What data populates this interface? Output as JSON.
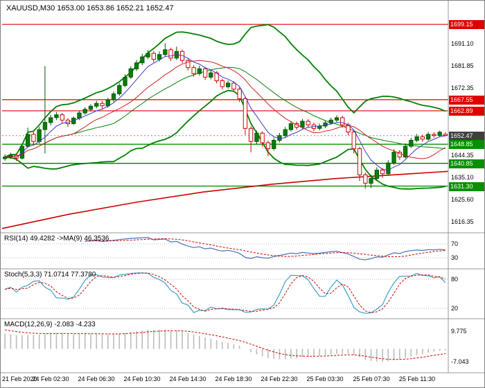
{
  "header": {
    "symbol_label": "XAUUSD,M30 1653.00 1653.86 1652.21 1652.47"
  },
  "colors": {
    "up_fill": "#067f06",
    "up_stroke": "#045504",
    "down_fill": "#ffffff",
    "down_stroke": "#cc0000",
    "bb": "#008000",
    "ma_fast": "#3a3ac8",
    "ma_mid": "#cc2222",
    "ma_long": "#cc0000",
    "res_line": "#e00000",
    "sup_line": "#089000",
    "current_line": "#888888",
    "grid_dotted": "#b8b8b8",
    "divider": "#9a9a9a",
    "rsi_line": "#4a6fb5",
    "rsi_ma": "#cc0000",
    "stoch_k": "#3aa0c8",
    "stoch_d": "#cc0000",
    "macd_hist": "#bbbbbb",
    "macd_signal": "#cc0000"
  },
  "chart_data": {
    "type": "candlestick",
    "symbol": "XAUUSD",
    "timeframe": "M30",
    "current_bar": {
      "open": 1653.0,
      "high": 1653.86,
      "low": 1652.21,
      "close": 1652.47
    },
    "ohlc_header": [
      "open",
      "high",
      "low",
      "close"
    ],
    "candles": [
      [
        1642.8,
        1644.6,
        1641.9,
        1643.5
      ],
      [
        1643.5,
        1645.3,
        1642.8,
        1644.2
      ],
      [
        1644.2,
        1645.0,
        1641.8,
        1643.0
      ],
      [
        1643.0,
        1648.8,
        1642.5,
        1648.0
      ],
      [
        1648.0,
        1655.8,
        1647.3,
        1653.0
      ],
      [
        1653.0,
        1654.0,
        1648.5,
        1650.0
      ],
      [
        1650.0,
        1656.2,
        1649.2,
        1655.0
      ],
      [
        1655.0,
        1681.6,
        1645.0,
        1658.0
      ],
      [
        1658.0,
        1661.2,
        1656.8,
        1660.0
      ],
      [
        1660.0,
        1662.4,
        1659.0,
        1661.2
      ],
      [
        1661.2,
        1662.0,
        1657.8,
        1659.0
      ],
      [
        1659.0,
        1659.8,
        1656.2,
        1657.5
      ],
      [
        1657.5,
        1660.6,
        1656.9,
        1659.8
      ],
      [
        1659.8,
        1662.9,
        1659.0,
        1662.0
      ],
      [
        1662.0,
        1664.4,
        1661.2,
        1663.5
      ],
      [
        1663.5,
        1665.7,
        1662.6,
        1664.8
      ],
      [
        1664.8,
        1667.1,
        1663.9,
        1666.0
      ],
      [
        1666.0,
        1667.0,
        1663.8,
        1665.0
      ],
      [
        1665.0,
        1668.4,
        1664.2,
        1667.5
      ],
      [
        1667.5,
        1671.0,
        1666.6,
        1670.0
      ],
      [
        1670.0,
        1674.5,
        1669.2,
        1673.5
      ],
      [
        1673.5,
        1678.2,
        1672.8,
        1677.0
      ],
      [
        1677.0,
        1681.6,
        1676.2,
        1680.5
      ],
      [
        1680.5,
        1684.2,
        1679.6,
        1683.0
      ],
      [
        1683.0,
        1686.8,
        1682.0,
        1685.5
      ],
      [
        1685.5,
        1688.4,
        1684.6,
        1687.0
      ],
      [
        1687.0,
        1687.9,
        1683.2,
        1684.5
      ],
      [
        1684.5,
        1687.8,
        1683.6,
        1686.5
      ],
      [
        1686.5,
        1691.3,
        1685.6,
        1688.5
      ],
      [
        1688.5,
        1689.4,
        1683.8,
        1685.0
      ],
      [
        1685.0,
        1689.8,
        1684.2,
        1687.8
      ],
      [
        1687.8,
        1688.6,
        1682.9,
        1684.0
      ],
      [
        1684.0,
        1685.0,
        1679.8,
        1681.0
      ],
      [
        1681.0,
        1682.0,
        1677.2,
        1678.5
      ],
      [
        1678.5,
        1681.8,
        1677.6,
        1680.5
      ],
      [
        1680.5,
        1681.4,
        1675.8,
        1677.0
      ],
      [
        1677.0,
        1679.9,
        1676.1,
        1678.8
      ],
      [
        1678.8,
        1679.6,
        1674.4,
        1675.5
      ],
      [
        1675.5,
        1676.4,
        1671.9,
        1673.0
      ],
      [
        1673.0,
        1675.6,
        1672.2,
        1674.5
      ],
      [
        1674.5,
        1675.3,
        1670.8,
        1672.0
      ],
      [
        1672.0,
        1672.8,
        1666.6,
        1668.0
      ],
      [
        1668.0,
        1668.8,
        1652.8,
        1655.5
      ],
      [
        1655.5,
        1656.4,
        1645.5,
        1650.0
      ],
      [
        1650.0,
        1654.6,
        1648.9,
        1653.5
      ],
      [
        1653.5,
        1654.3,
        1647.8,
        1649.5
      ],
      [
        1649.5,
        1650.4,
        1643.8,
        1647.0
      ],
      [
        1647.0,
        1651.6,
        1646.2,
        1650.5
      ],
      [
        1650.5,
        1653.6,
        1649.6,
        1652.5
      ],
      [
        1652.5,
        1656.1,
        1651.7,
        1655.0
      ],
      [
        1655.0,
        1658.6,
        1654.2,
        1657.5
      ],
      [
        1657.5,
        1658.4,
        1654.9,
        1656.0
      ],
      [
        1656.0,
        1659.5,
        1655.2,
        1658.5
      ],
      [
        1658.5,
        1659.4,
        1655.8,
        1657.0
      ],
      [
        1657.0,
        1657.9,
        1654.3,
        1655.5
      ],
      [
        1655.5,
        1657.6,
        1654.7,
        1656.5
      ],
      [
        1656.5,
        1658.7,
        1655.6,
        1657.8
      ],
      [
        1657.8,
        1660.0,
        1657.0,
        1659.0
      ],
      [
        1659.0,
        1661.0,
        1658.1,
        1660.0
      ],
      [
        1660.0,
        1660.8,
        1655.8,
        1657.0
      ],
      [
        1657.0,
        1657.8,
        1652.6,
        1654.0
      ],
      [
        1654.0,
        1654.8,
        1645.0,
        1647.0
      ],
      [
        1647.0,
        1647.8,
        1633.5,
        1636.0
      ],
      [
        1636.0,
        1637.0,
        1630.2,
        1632.5
      ],
      [
        1632.5,
        1636.0,
        1630.5,
        1634.5
      ],
      [
        1634.5,
        1639.2,
        1633.4,
        1638.0
      ],
      [
        1638.0,
        1639.0,
        1634.8,
        1636.5
      ],
      [
        1636.5,
        1642.2,
        1635.7,
        1641.0
      ],
      [
        1641.0,
        1646.8,
        1640.2,
        1645.5
      ],
      [
        1645.5,
        1646.4,
        1642.3,
        1643.5
      ],
      [
        1643.5,
        1649.2,
        1642.8,
        1648.0
      ],
      [
        1648.0,
        1651.6,
        1647.3,
        1650.5
      ],
      [
        1650.5,
        1653.2,
        1649.7,
        1652.0
      ],
      [
        1652.0,
        1652.9,
        1649.9,
        1651.0
      ],
      [
        1651.0,
        1654.0,
        1650.3,
        1653.0
      ],
      [
        1653.0,
        1653.9,
        1651.6,
        1652.5
      ],
      [
        1652.5,
        1654.6,
        1651.8,
        1653.9
      ],
      [
        1653.0,
        1653.9,
        1652.2,
        1652.5
      ]
    ],
    "x_ticks": {
      "indices": [
        0,
        8,
        16,
        24,
        32,
        40,
        48,
        56,
        64,
        72
      ],
      "labels": [
        "21 Feb 2020",
        "24 Feb 02:30",
        "24 Feb 06:30",
        "24 Feb 10:30",
        "24 Feb 14:30",
        "24 Feb 18:30",
        "24 Feb 22:30",
        "25 Feb 03:30",
        "25 Feb 07:30",
        "25 Feb 11:30"
      ]
    },
    "price_axis": {
      "range": [
        1612.0,
        1708.5
      ],
      "plain_ticks": [
        1691.1,
        1681.85,
        1672.35,
        1644.35,
        1635.1,
        1625.6,
        1616.35
      ],
      "level_labels": [
        {
          "value": 1699.15,
          "type": "resistance"
        },
        {
          "value": 1667.55,
          "type": "resistance"
        },
        {
          "value": 1662.89,
          "type": "resistance"
        },
        {
          "value": 1652.47,
          "type": "current"
        },
        {
          "value": 1648.85,
          "type": "support"
        },
        {
          "value": 1640.85,
          "type": "support"
        },
        {
          "value": 1631.3,
          "type": "support"
        }
      ]
    },
    "levels": {
      "resistance": [
        1699.15,
        1667.55,
        1662.89
      ],
      "support": [
        1648.85,
        1640.85,
        1631.3
      ],
      "current_price": 1652.47
    },
    "overlays": {
      "bollinger": {
        "period": 20,
        "deviation": 2
      },
      "ma_fast_period": 8,
      "ma_mid_period": 13,
      "long_ma_points": [
        [
          0,
          1613.5
        ],
        [
          0.15,
          1619.5
        ],
        [
          0.3,
          1624.5
        ],
        [
          0.45,
          1628.8
        ],
        [
          0.6,
          1632.0
        ],
        [
          0.75,
          1634.5
        ],
        [
          0.9,
          1636.3
        ],
        [
          1,
          1637.5
        ]
      ]
    },
    "indicators": [
      {
        "name": "RSI",
        "label": "RSI(14) 49.4282 ->MA(9) 46.3536",
        "period": 14,
        "ma_period": 9,
        "levels": [
          70,
          30
        ],
        "current": 49.4282,
        "ma_current": 46.3536
      },
      {
        "name": "Stochastic",
        "label": "Stoch(5,3,3) 71.0714 77.3780",
        "levels": [
          80,
          20
        ],
        "current": 71.0714,
        "signal_current": 77.378
      },
      {
        "name": "MACD",
        "label": "MACD(12,26,9) -2.083 -4.233",
        "scale_ticks": [
          9.775,
          -7.043
        ],
        "current": -2.083,
        "signal_current": -4.233
      }
    ]
  }
}
